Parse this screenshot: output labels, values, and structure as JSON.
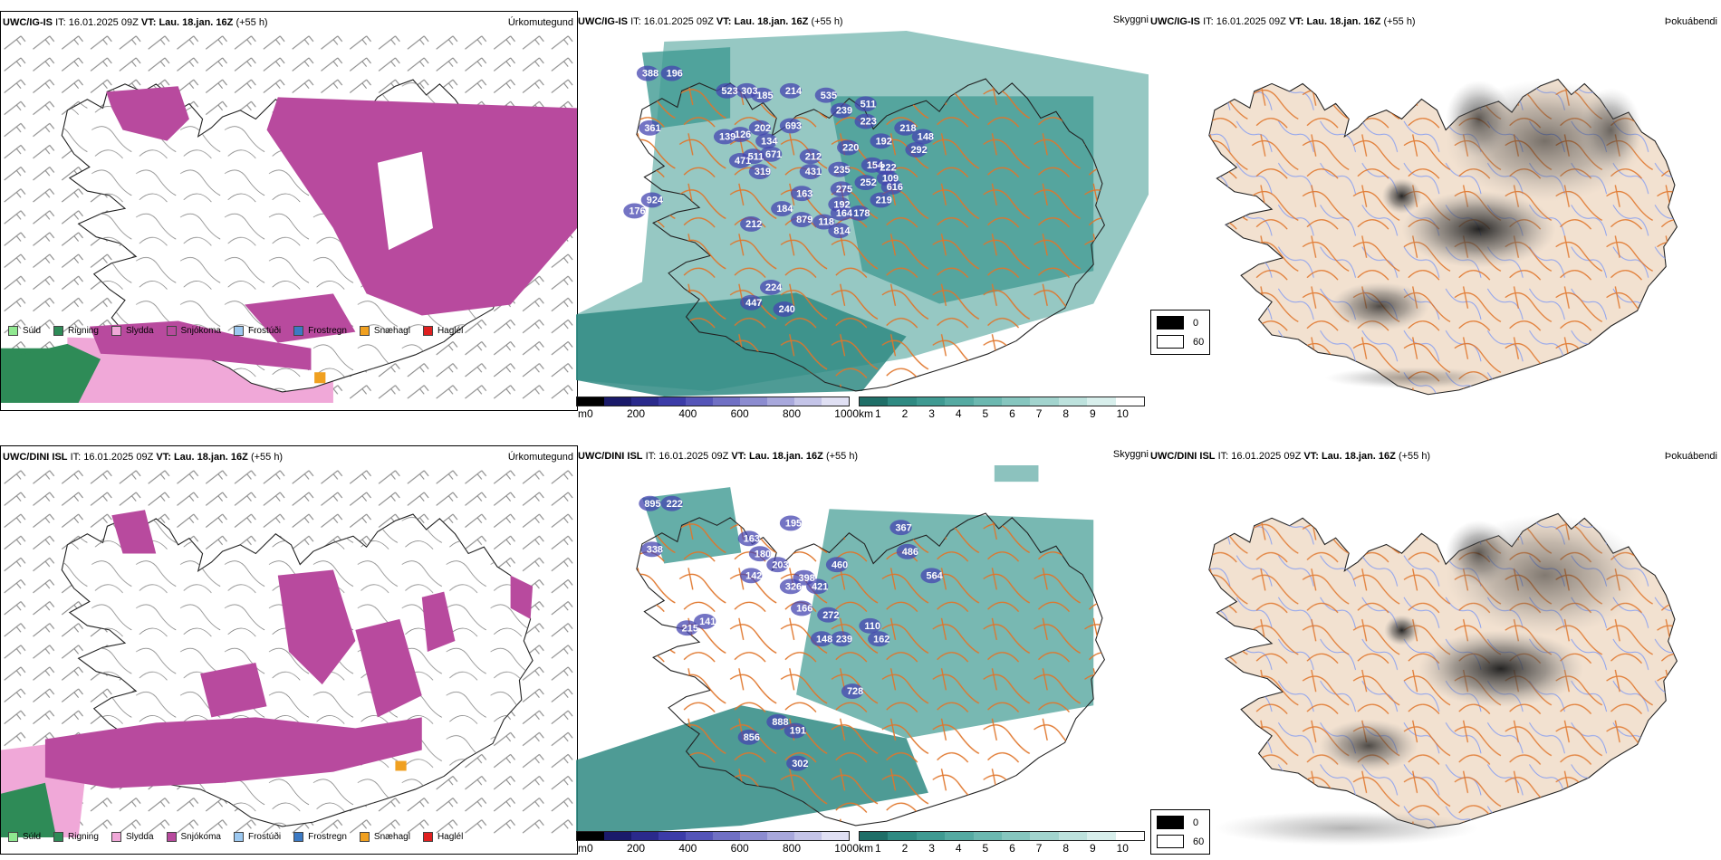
{
  "rows": [
    {
      "model": "UWC/IG-IS",
      "it_label": "IT:",
      "it_value": "16.01.2025 09Z",
      "vt_label": "VT:",
      "vt_value": "Lau. 18.jan. 16Z",
      "lead": "(+55 h)",
      "vis_labels": [
        "388",
        "196",
        "361",
        "523",
        "303",
        "185",
        "214",
        "535",
        "511",
        "139",
        "126",
        "202",
        "134",
        "693",
        "239",
        "223",
        "148",
        "218",
        "471",
        "511",
        "671",
        "319",
        "212",
        "220",
        "192",
        "292",
        "431",
        "235",
        "222",
        "154",
        "109",
        "176",
        "924",
        "163",
        "275",
        "252",
        "616",
        "184",
        "192",
        "219",
        "212",
        "879",
        "118",
        "164",
        "178",
        "814",
        "224",
        "240",
        "447"
      ]
    },
    {
      "model": "UWC/DINI ISL",
      "it_label": "IT:",
      "it_value": "16.01.2025 09Z",
      "vt_label": "VT:",
      "vt_value": "Lau. 18.jan. 16Z",
      "lead": "(+55 h)",
      "vis_labels": [
        "895",
        "222",
        "338",
        "195",
        "163",
        "180",
        "203",
        "142",
        "398",
        "326",
        "460",
        "367",
        "486",
        "564",
        "421",
        "166",
        "272",
        "215",
        "141",
        "148",
        "239",
        "110",
        "162",
        "728",
        "888",
        "191",
        "856",
        "302"
      ]
    }
  ],
  "panels": {
    "precip_type": {
      "title": "Úrkomutegund",
      "legend": [
        {
          "label": "Súld",
          "color": "#90e890"
        },
        {
          "label": "Rigning",
          "color": "#2e8b57"
        },
        {
          "label": "Slydda",
          "color": "#f0a8d8"
        },
        {
          "label": "Snjókoma",
          "color": "#b84a9e"
        },
        {
          "label": "Frostúði",
          "color": "#9cc8f0"
        },
        {
          "label": "Frostregn",
          "color": "#3c7ac4"
        },
        {
          "label": "Snæhagl",
          "color": "#f0a020"
        },
        {
          "label": "Haglél",
          "color": "#e02020"
        }
      ]
    },
    "visibility": {
      "title": "Skyggni",
      "height_unit": "m",
      "height_ticks": [
        "0",
        "200",
        "400",
        "600",
        "800",
        "1000"
      ],
      "vis_unit": "km",
      "vis_ticks": [
        "1",
        "2",
        "3",
        "4",
        "5",
        "6",
        "7",
        "8",
        "9",
        "10"
      ]
    },
    "fog": {
      "title": "Þokuábendi",
      "key": [
        {
          "label": "0",
          "color": "#000000"
        },
        {
          "label": "60",
          "color": "#ffffff"
        }
      ]
    }
  }
}
